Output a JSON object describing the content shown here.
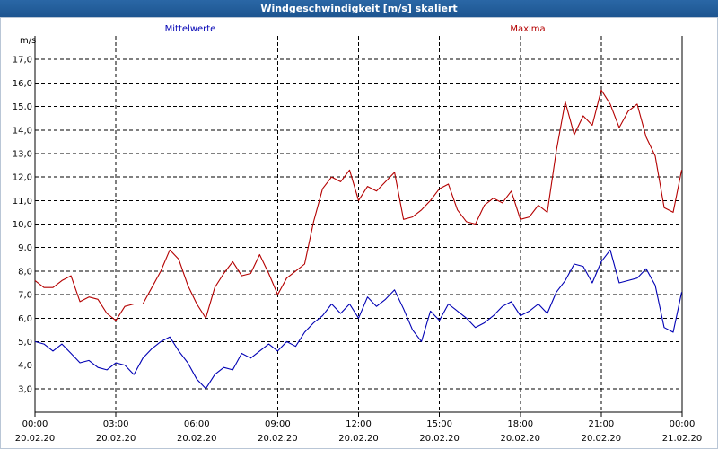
{
  "window": {
    "title": "Windgeschwindigkeit [m/s] skaliert"
  },
  "colors": {
    "titlebar": "#1f5a96",
    "mean": "#0000b4",
    "max": "#b40000",
    "grid": "#000000"
  },
  "chart_data": {
    "type": "line",
    "ylabel": "m/s",
    "ylim": [
      2.0,
      18.0
    ],
    "yticks": [
      "3,0",
      "4,0",
      "5,0",
      "6,0",
      "7,0",
      "8,0",
      "9,0",
      "10,0",
      "11,0",
      "12,0",
      "13,0",
      "14,0",
      "15,0",
      "16,0",
      "17,0"
    ],
    "xticks": [
      {
        "time": "00:00",
        "date": "20.02.20"
      },
      {
        "time": "03:00",
        "date": "20.02.20"
      },
      {
        "time": "06:00",
        "date": "20.02.20"
      },
      {
        "time": "09:00",
        "date": "20.02.20"
      },
      {
        "time": "12:00",
        "date": "20.02.20"
      },
      {
        "time": "15:00",
        "date": "20.02.20"
      },
      {
        "time": "18:00",
        "date": "20.02.20"
      },
      {
        "time": "21:00",
        "date": "20.02.20"
      },
      {
        "time": "00:00",
        "date": "21.02.20"
      }
    ],
    "x_start": "2020-02-20 00:00",
    "x_end": "2020-02-21 00:00",
    "grid": true,
    "series": [
      {
        "name": "Mittelwerte",
        "color": "#0000b4",
        "x": [
          "00:00",
          "00:20",
          "00:40",
          "01:00",
          "01:20",
          "01:40",
          "02:00",
          "02:20",
          "02:40",
          "03:00",
          "03:20",
          "03:40",
          "04:00",
          "04:20",
          "04:40",
          "05:00",
          "05:20",
          "05:40",
          "06:00",
          "06:20",
          "06:40",
          "07:00",
          "07:20",
          "07:40",
          "08:00",
          "08:20",
          "08:40",
          "09:00",
          "09:20",
          "09:40",
          "10:00",
          "10:20",
          "10:40",
          "11:00",
          "11:20",
          "11:40",
          "12:00",
          "12:20",
          "12:40",
          "13:00",
          "13:20",
          "13:40",
          "14:00",
          "14:20",
          "14:40",
          "15:00",
          "15:20",
          "15:40",
          "16:00",
          "16:20",
          "16:40",
          "17:00",
          "17:20",
          "17:40",
          "18:00",
          "18:20",
          "18:40",
          "19:00",
          "19:20",
          "19:40",
          "20:00",
          "20:20",
          "20:40",
          "21:00",
          "21:20",
          "21:40",
          "22:00",
          "22:20",
          "22:40",
          "23:00",
          "23:20",
          "23:40",
          "23:59"
        ],
        "values": [
          5.0,
          4.9,
          4.6,
          4.9,
          4.5,
          4.1,
          4.2,
          3.9,
          3.8,
          4.1,
          4.0,
          3.6,
          4.3,
          4.7,
          5.0,
          5.2,
          4.6,
          4.1,
          3.4,
          3.0,
          3.6,
          3.9,
          3.8,
          4.5,
          4.3,
          4.6,
          4.9,
          4.6,
          5.0,
          4.8,
          5.4,
          5.8,
          6.1,
          6.6,
          6.2,
          6.6,
          6.0,
          6.9,
          6.5,
          6.8,
          7.2,
          6.4,
          5.5,
          5.0,
          6.3,
          5.9,
          6.6,
          6.3,
          6.0,
          5.6,
          5.8,
          6.1,
          6.5,
          6.7,
          6.1,
          6.3,
          6.6,
          6.2,
          7.1,
          7.6,
          8.3,
          8.2,
          7.5,
          8.4,
          8.9,
          7.5,
          7.6,
          7.7,
          8.1,
          7.4,
          5.6,
          5.4,
          7.1
        ],
        "label": "Mittelwerte"
      },
      {
        "name": "Maxima",
        "color": "#b40000",
        "x": [
          "00:00",
          "00:20",
          "00:40",
          "01:00",
          "01:20",
          "01:40",
          "02:00",
          "02:20",
          "02:40",
          "03:00",
          "03:20",
          "03:40",
          "04:00",
          "04:20",
          "04:40",
          "05:00",
          "05:20",
          "05:40",
          "06:00",
          "06:20",
          "06:40",
          "07:00",
          "07:20",
          "07:40",
          "08:00",
          "08:20",
          "08:40",
          "09:00",
          "09:20",
          "09:40",
          "10:00",
          "10:20",
          "10:40",
          "11:00",
          "11:20",
          "11:40",
          "12:00",
          "12:20",
          "12:40",
          "13:00",
          "13:20",
          "13:40",
          "14:00",
          "14:20",
          "14:40",
          "15:00",
          "15:20",
          "15:40",
          "16:00",
          "16:20",
          "16:40",
          "17:00",
          "17:20",
          "17:40",
          "18:00",
          "18:20",
          "18:40",
          "19:00",
          "19:20",
          "19:40",
          "20:00",
          "20:20",
          "20:40",
          "21:00",
          "21:20",
          "21:40",
          "22:00",
          "22:20",
          "22:40",
          "23:00",
          "23:20",
          "23:40",
          "23:59"
        ],
        "values": [
          7.6,
          7.3,
          7.3,
          7.6,
          7.8,
          6.7,
          6.9,
          6.8,
          6.2,
          5.9,
          6.5,
          6.6,
          6.6,
          7.3,
          8.0,
          8.9,
          8.5,
          7.4,
          6.6,
          6.0,
          7.3,
          7.9,
          8.4,
          7.8,
          7.9,
          8.7,
          7.9,
          7.0,
          7.7,
          8.0,
          8.3,
          10.1,
          11.5,
          12.0,
          11.8,
          12.3,
          11.0,
          11.6,
          11.4,
          11.8,
          12.2,
          10.2,
          10.3,
          10.6,
          11.0,
          11.5,
          11.7,
          10.6,
          10.1,
          10.0,
          10.8,
          11.1,
          10.9,
          11.4,
          10.2,
          10.3,
          10.8,
          10.5,
          13.1,
          15.2,
          13.8,
          14.6,
          14.2,
          15.7,
          15.1,
          14.1,
          14.8,
          15.1,
          13.7,
          12.9,
          10.7,
          10.5,
          12.3
        ],
        "label": "Maxima"
      }
    ]
  }
}
